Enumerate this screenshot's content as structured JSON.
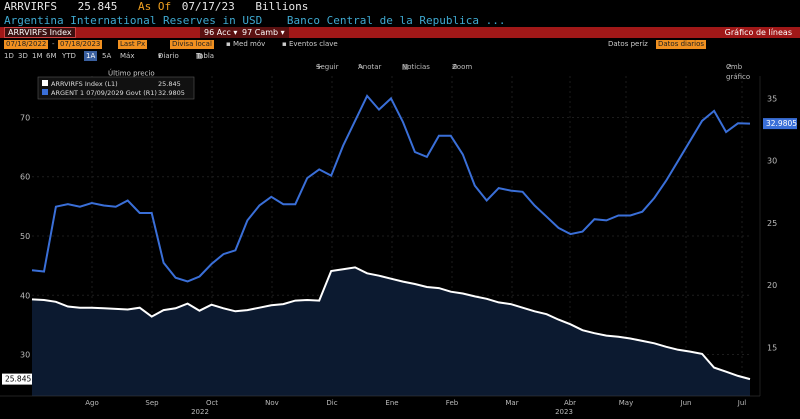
{
  "header": {
    "ticker": "ARRVIRFS",
    "last_value": "25.845",
    "as_of_label": "As Of",
    "as_of_date": "07/17/23",
    "units": "Billions",
    "description": "Argentina International Reserves in USD",
    "source": "Banco Central de la Republica ..."
  },
  "red_bar": {
    "ticker_field": "ARRVIRFS Index",
    "acc_label": "Acc",
    "acc_num": "96",
    "cmb_label": "Camb",
    "cmb_num": "97",
    "chart_type_label": "Gráfico de líneas"
  },
  "controls": {
    "start_date": "07/18/2022",
    "end_date": "07/18/2023",
    "field": "Last Px",
    "currency": "Divisa local",
    "med_mov": "Med móv",
    "eventos": "Eventos clave",
    "datos_label": "Datos períz",
    "datos_value": "Datos diarios"
  },
  "periods": {
    "items": [
      "1D",
      "3D",
      "1M",
      "6M",
      "YTD",
      "1A",
      "5A",
      "Máx"
    ],
    "selected": "1A",
    "frequency": "Diario",
    "tabla": "Tabla"
  },
  "toolbar": {
    "seguir": "Seguir",
    "anotar": "Anotar",
    "noticias": "Noticias",
    "zoom": "Zoom",
    "cmb_grafico": "Cmb gráfico"
  },
  "legend": {
    "title": "Último precio",
    "entries": [
      {
        "label": "ARRVIRFS Index (L1)",
        "value": "25.845",
        "color": "#ffffff"
      },
      {
        "label": "ARGENT 1 07/09/2029 Govt (R1)",
        "value": "32.9805",
        "color": "#3a6fd8"
      }
    ]
  },
  "colors": {
    "reserves_line": "#ffffff",
    "reserves_fill": "#0c1a30",
    "bond_line": "#3a6fd8",
    "bond_badge": "#3a6fd8",
    "accent_orange": "#f09020",
    "bar_red": "#a01818"
  },
  "chart_data": {
    "type": "line",
    "title": "Argentina International Reserves in USD",
    "x_labels": [
      "Ago",
      "Sep",
      "Oct",
      "Nov",
      "Dic",
      "Ene",
      "Feb",
      "Mar",
      "Abr",
      "May",
      "Jun",
      "Jul"
    ],
    "year_labels": [
      "2022",
      "2023"
    ],
    "left_axis": {
      "ticks": [
        30,
        40,
        50,
        60,
        70
      ],
      "range": [
        23,
        77
      ],
      "last_label": "25.845"
    },
    "right_axis": {
      "ticks": [
        15,
        20,
        25,
        30,
        35
      ],
      "range": [
        11.1,
        36.8
      ],
      "last_label": "32.9805"
    },
    "series": [
      {
        "name": "ARRVIRFS Index (L1)",
        "axis": "left",
        "values": [
          39.3,
          39.2,
          38.9,
          38.1,
          37.9,
          37.9,
          37.8,
          37.7,
          37.6,
          37.9,
          36.4,
          37.5,
          37.8,
          38.6,
          37.4,
          38.4,
          37.8,
          37.3,
          37.5,
          37.9,
          38.3,
          38.5,
          39.1,
          39.2,
          39.1,
          44.1,
          44.4,
          44.7,
          43.7,
          43.3,
          42.8,
          42.3,
          41.9,
          41.4,
          41.2,
          40.6,
          40.3,
          39.8,
          39.4,
          38.8,
          38.5,
          37.9,
          37.3,
          36.8,
          35.9,
          35.1,
          34.1,
          33.6,
          33.2,
          33.0,
          32.7,
          32.3,
          31.9,
          31.3,
          30.8,
          30.5,
          30.1,
          27.8,
          27.1,
          26.4,
          25.845
        ]
      },
      {
        "name": "ARGENT 1 07/09/2029 Govt (R1)",
        "axis": "right",
        "values": [
          21.2,
          21.1,
          26.3,
          26.5,
          26.3,
          26.6,
          26.4,
          26.3,
          26.8,
          25.8,
          25.8,
          21.8,
          20.6,
          20.3,
          20.7,
          21.7,
          22.5,
          22.8,
          25.2,
          26.4,
          27.1,
          26.5,
          26.5,
          28.6,
          29.3,
          28.8,
          31.2,
          33.2,
          35.2,
          34.1,
          35.0,
          33.1,
          30.7,
          30.3,
          32.0,
          32.0,
          30.5,
          28.0,
          26.8,
          27.8,
          27.6,
          27.5,
          26.4,
          25.5,
          24.6,
          24.1,
          24.3,
          25.3,
          25.2,
          25.6,
          25.6,
          25.9,
          27.0,
          28.4,
          30.0,
          31.6,
          33.2,
          34.0,
          32.3,
          33.0,
          32.9805
        ]
      }
    ]
  }
}
